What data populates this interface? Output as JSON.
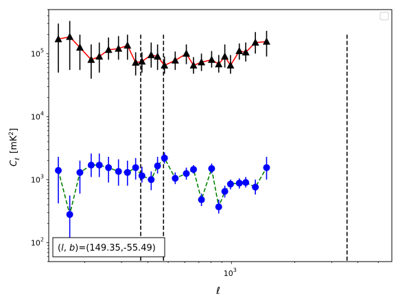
{
  "chart_data": {
    "type": "scatter",
    "xscale": "log",
    "yscale": "log",
    "xlim": [
      135,
      5800
    ],
    "ylim": [
      50,
      500000
    ],
    "xlabel": "ℓ",
    "ylabel_main": "C",
    "ylabel_sub": "ℓ",
    "ylabel_unit": "[mK",
    "ylabel_unit_sup": "2",
    "ylabel_unit_close": "]",
    "x_major_ticks": [
      {
        "value": 1000,
        "base": "10",
        "exp": "3"
      }
    ],
    "y_major_ticks": [
      {
        "value": 100,
        "base": "10",
        "exp": "2"
      },
      {
        "value": 1000,
        "base": "10",
        "exp": "3"
      },
      {
        "value": 10000,
        "base": "10",
        "exp": "4"
      },
      {
        "value": 100000,
        "base": "10",
        "exp": "5"
      }
    ],
    "vlines": [
      370,
      475,
      3550
    ],
    "annotation": "(l, b)=(149.35,-55.49)",
    "annotation_l": "l",
    "annotation_b": "b",
    "annotation_value": "=(149.35,-55.49)",
    "legend": "empty box, top-right",
    "series": [
      {
        "marker": "triangle",
        "marker_color": "#000000",
        "line_color": "#ff0000",
        "line_style": "solid",
        "x": [
          150,
          170,
          190,
          215,
          235,
          260,
          290,
          320,
          350,
          375,
          415,
          445,
          480,
          540,
          610,
          660,
          720,
          805,
          870,
          930,
          990,
          1090,
          1170,
          1300,
          1470
        ],
        "y": [
          170000,
          185000,
          125000,
          80000,
          90000,
          115000,
          120000,
          135000,
          72000,
          75000,
          95000,
          90000,
          65000,
          78000,
          100000,
          65000,
          73000,
          80000,
          68000,
          90000,
          65000,
          110000,
          105000,
          150000,
          155000
        ],
        "err_low": [
          50000,
          55000,
          55000,
          40000,
          50000,
          80000,
          80000,
          80000,
          45000,
          50000,
          60000,
          55000,
          48000,
          55000,
          68000,
          48000,
          53000,
          60000,
          50000,
          60000,
          48000,
          80000,
          75000,
          100000,
          90000
        ],
        "err_high": [
          300000,
          330000,
          200000,
          140000,
          150000,
          180000,
          190000,
          200000,
          105000,
          105000,
          150000,
          140000,
          90000,
          108000,
          140000,
          88000,
          100000,
          110000,
          95000,
          140000,
          95000,
          145000,
          150000,
          220000,
          230000
        ]
      },
      {
        "marker": "circle",
        "marker_color": "#0000ff",
        "line_color": "#008000",
        "line_style": "dashed",
        "x": [
          150,
          170,
          190,
          215,
          235,
          260,
          290,
          320,
          350,
          375,
          415,
          445,
          480,
          540,
          610,
          660,
          720,
          805,
          870,
          930,
          990,
          1090,
          1170,
          1300,
          1470
        ],
        "y": [
          1400,
          280,
          1300,
          1700,
          1700,
          1550,
          1350,
          1300,
          1550,
          1150,
          1000,
          1650,
          2200,
          1050,
          1250,
          1450,
          480,
          1500,
          370,
          650,
          850,
          880,
          900,
          760,
          1550
        ],
        "err_low": [
          420,
          90,
          600,
          1100,
          1100,
          900,
          800,
          800,
          1000,
          900,
          680,
          1250,
          1800,
          850,
          1000,
          1250,
          380,
          1250,
          290,
          520,
          700,
          720,
          750,
          580,
          1000
        ],
        "err_high": [
          2300,
          560,
          2000,
          2600,
          2600,
          2300,
          2100,
          2000,
          2200,
          1600,
          1350,
          2300,
          2700,
          1300,
          1550,
          1700,
          600,
          1800,
          480,
          800,
          1000,
          1050,
          1100,
          1000,
          2300
        ]
      }
    ]
  }
}
